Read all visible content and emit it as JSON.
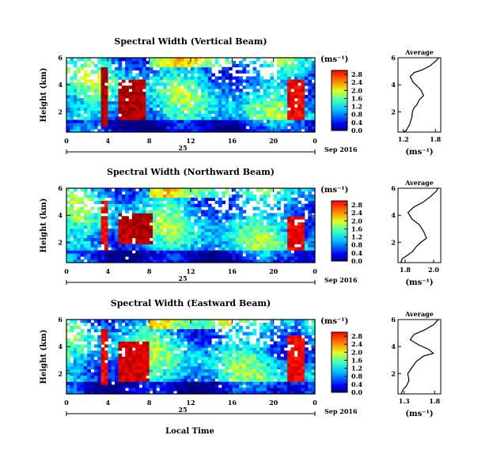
{
  "figure": {
    "xlabel": "Local Time",
    "date_label": "Sep 2016",
    "day_label": "25",
    "x_ticks": [
      "0",
      "4",
      "8",
      "12",
      "16",
      "20",
      "0"
    ],
    "y_ticks": [
      "2",
      "4",
      "6"
    ],
    "ylabel": "Height (km)",
    "colorbar_unit": "(ms⁻¹)",
    "avg_title": "Average",
    "avg_xlabel": "(ms⁻¹)"
  },
  "chart_data": [
    {
      "type": "heatmap",
      "title": "Spectral Width (Vertical Beam)",
      "xlabel": "Local Time",
      "ylabel": "Height (km)",
      "x_range_hours": [
        0,
        24
      ],
      "y_range_km": [
        0.5,
        6
      ],
      "colorbar_ticks": [
        "0.0",
        "0.4",
        "0.8",
        "1.2",
        "1.6",
        "2.0",
        "2.4",
        "2.8"
      ],
      "colorbar_range": [
        0.0,
        3.0
      ],
      "colormap": "jet",
      "notable_features": [
        {
          "hours": [
            3.3,
            4.0
          ],
          "km": [
            1.0,
            5.4
          ],
          "value": 3.0
        },
        {
          "hours": [
            5.0,
            7.8
          ],
          "km": [
            1.5,
            4.5
          ],
          "value": 3.0
        },
        {
          "hours": [
            21.5,
            23.0
          ],
          "km": [
            1.5,
            4.5
          ],
          "value": 2.8
        }
      ]
    },
    {
      "type": "heatmap",
      "title": "Spectral Width (Northward Beam)",
      "xlabel": "Local Time",
      "ylabel": "Height (km)",
      "x_range_hours": [
        0,
        24
      ],
      "y_range_km": [
        0.5,
        6
      ],
      "colorbar_ticks": [
        "0.0",
        "0.4",
        "0.8",
        "1.2",
        "1.6",
        "2.0",
        "2.4",
        "2.8"
      ],
      "colorbar_range": [
        0.0,
        3.0
      ],
      "colormap": "jet",
      "notable_features": [
        {
          "hours": [
            3.3,
            4.0
          ],
          "km": [
            1.5,
            5.0
          ],
          "value": 2.8
        },
        {
          "hours": [
            5.0,
            8.2
          ],
          "km": [
            1.8,
            4.2
          ],
          "value": 3.0
        },
        {
          "hours": [
            21.5,
            23.0
          ],
          "km": [
            1.5,
            4.0
          ],
          "value": 2.8
        }
      ]
    },
    {
      "type": "heatmap",
      "title": "Spectral Width (Eastward Beam)",
      "xlabel": "Local Time",
      "ylabel": "Height (km)",
      "x_range_hours": [
        0,
        24
      ],
      "y_range_km": [
        0.5,
        6
      ],
      "colorbar_ticks": [
        "0.0",
        "0.4",
        "0.8",
        "1.2",
        "1.6",
        "2.0",
        "2.4",
        "2.8"
      ],
      "colorbar_range": [
        0.0,
        3.0
      ],
      "colormap": "jet",
      "notable_features": [
        {
          "hours": [
            3.3,
            4.0
          ],
          "km": [
            1.2,
            5.2
          ],
          "value": 2.8
        },
        {
          "hours": [
            5.0,
            8.0
          ],
          "km": [
            1.5,
            4.5
          ],
          "value": 2.9
        },
        {
          "hours": [
            21.5,
            23.0
          ],
          "km": [
            1.5,
            4.8
          ],
          "value": 2.8
        }
      ]
    },
    {
      "type": "line",
      "title": "Average",
      "xlabel": "(ms⁻¹)",
      "x_ticks": [
        "1.2",
        "1.8"
      ],
      "xlim": [
        1.1,
        1.9
      ],
      "y_ticks": [
        "2",
        "4",
        "6"
      ],
      "ylim": [
        0.5,
        6
      ],
      "profile": [
        [
          1.2,
          0.5
        ],
        [
          1.25,
          0.6
        ],
        [
          1.28,
          0.8
        ],
        [
          1.32,
          1.1
        ],
        [
          1.36,
          1.6
        ],
        [
          1.37,
          2.0
        ],
        [
          1.4,
          2.3
        ],
        [
          1.45,
          2.5
        ],
        [
          1.5,
          2.9
        ],
        [
          1.58,
          3.2
        ],
        [
          1.53,
          3.6
        ],
        [
          1.46,
          3.9
        ],
        [
          1.38,
          4.2
        ],
        [
          1.33,
          4.6
        ],
        [
          1.4,
          4.9
        ],
        [
          1.55,
          5.1
        ],
        [
          1.7,
          5.4
        ],
        [
          1.82,
          5.8
        ],
        [
          1.86,
          6.0
        ]
      ]
    },
    {
      "type": "line",
      "title": "Average",
      "xlabel": "(ms⁻¹)",
      "x_ticks": [
        "1.8",
        "2.0"
      ],
      "xlim": [
        1.75,
        2.05
      ],
      "y_ticks": [
        "2",
        "4",
        "6"
      ],
      "ylim": [
        0.5,
        6
      ],
      "profile": [
        [
          1.77,
          0.5
        ],
        [
          1.78,
          0.8
        ],
        [
          1.81,
          1.0
        ],
        [
          1.85,
          1.3
        ],
        [
          1.88,
          1.7
        ],
        [
          1.91,
          2.0
        ],
        [
          1.95,
          2.3
        ],
        [
          1.93,
          2.8
        ],
        [
          1.9,
          3.3
        ],
        [
          1.85,
          3.7
        ],
        [
          1.82,
          4.2
        ],
        [
          1.86,
          4.6
        ],
        [
          1.93,
          5.0
        ],
        [
          1.98,
          5.4
        ],
        [
          2.02,
          5.8
        ],
        [
          2.03,
          6.0
        ]
      ]
    },
    {
      "type": "line",
      "title": "Average",
      "xlabel": "(ms⁻¹)",
      "x_ticks": [
        "1.3",
        "1.8"
      ],
      "xlim": [
        1.2,
        1.9
      ],
      "y_ticks": [
        "2",
        "4",
        "6"
      ],
      "ylim": [
        0.5,
        6
      ],
      "profile": [
        [
          1.25,
          0.5
        ],
        [
          1.28,
          0.8
        ],
        [
          1.34,
          1.1
        ],
        [
          1.38,
          1.5
        ],
        [
          1.36,
          2.0
        ],
        [
          1.42,
          2.4
        ],
        [
          1.5,
          2.9
        ],
        [
          1.62,
          3.3
        ],
        [
          1.78,
          3.5
        ],
        [
          1.7,
          3.8
        ],
        [
          1.55,
          4.1
        ],
        [
          1.4,
          4.5
        ],
        [
          1.46,
          4.9
        ],
        [
          1.62,
          5.2
        ],
        [
          1.78,
          5.6
        ],
        [
          1.86,
          6.0
        ]
      ]
    }
  ]
}
